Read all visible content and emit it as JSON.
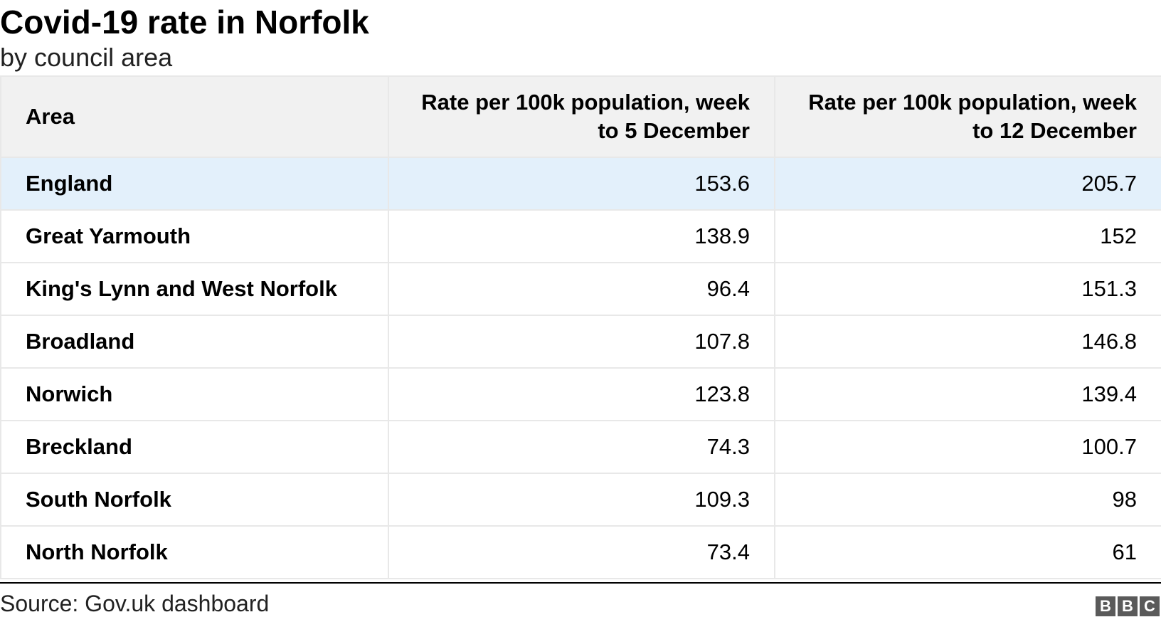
{
  "chart_data": {
    "type": "table",
    "title": "Covid-19 rate in Norfolk",
    "subtitle": "by council area",
    "columns": [
      "Area",
      "Rate per 100k population, week to 5 December",
      "Rate per 100k population, week to 12 December"
    ],
    "rows": [
      {
        "area": "England",
        "week_5_dec": "153.6",
        "week_12_dec": "205.7"
      },
      {
        "area": "Great Yarmouth",
        "week_5_dec": "138.9",
        "week_12_dec": "152"
      },
      {
        "area": "King's Lynn and West Norfolk",
        "week_5_dec": "96.4",
        "week_12_dec": "151.3"
      },
      {
        "area": "Broadland",
        "week_5_dec": "107.8",
        "week_12_dec": "146.8"
      },
      {
        "area": "Norwich",
        "week_5_dec": "123.8",
        "week_12_dec": "139.4"
      },
      {
        "area": "Breckland",
        "week_5_dec": "74.3",
        "week_12_dec": "100.7"
      },
      {
        "area": "South Norfolk",
        "week_5_dec": "109.3",
        "week_12_dec": "98"
      },
      {
        "area": "North Norfolk",
        "week_5_dec": "73.4",
        "week_12_dec": "61"
      }
    ],
    "highlighted_row": "England",
    "source": "Source: Gov.uk dashboard"
  },
  "logo": {
    "letters": [
      "B",
      "B",
      "C"
    ]
  },
  "colors": {
    "highlight_row": "#e3f0fb",
    "header_bg": "#f1f1f1",
    "grid": "#e8e8e8"
  }
}
